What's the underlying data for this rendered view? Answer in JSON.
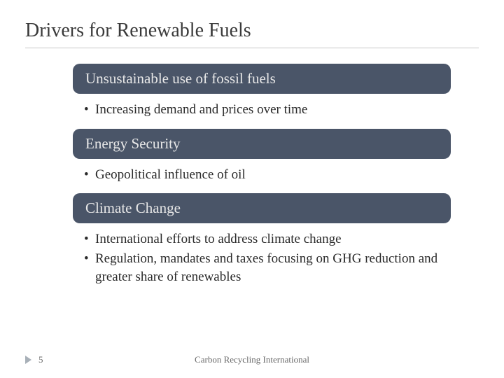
{
  "title": "Drivers for Renewable Fuels",
  "sections": [
    {
      "header": "Unsustainable use of fossil fuels",
      "bullets": [
        "Increasing demand and prices over time"
      ]
    },
    {
      "header": "Energy Security",
      "bullets": [
        "Geopolitical influence of oil"
      ]
    },
    {
      "header": "Climate Change",
      "bullets": [
        "International efforts to address climate change",
        "Regulation, mandates and taxes focusing on GHG reduction and greater share of renewables"
      ]
    }
  ],
  "pageNumber": "5",
  "footerText": "Carbon Recycling International",
  "colors": {
    "headerBg": "#4a5568",
    "headerText": "#e8e8e8",
    "titleColor": "#3a3a3a",
    "bodyText": "#2a2a2a",
    "footerText": "#6a6a6a",
    "triColor": "#a8b0b8"
  }
}
